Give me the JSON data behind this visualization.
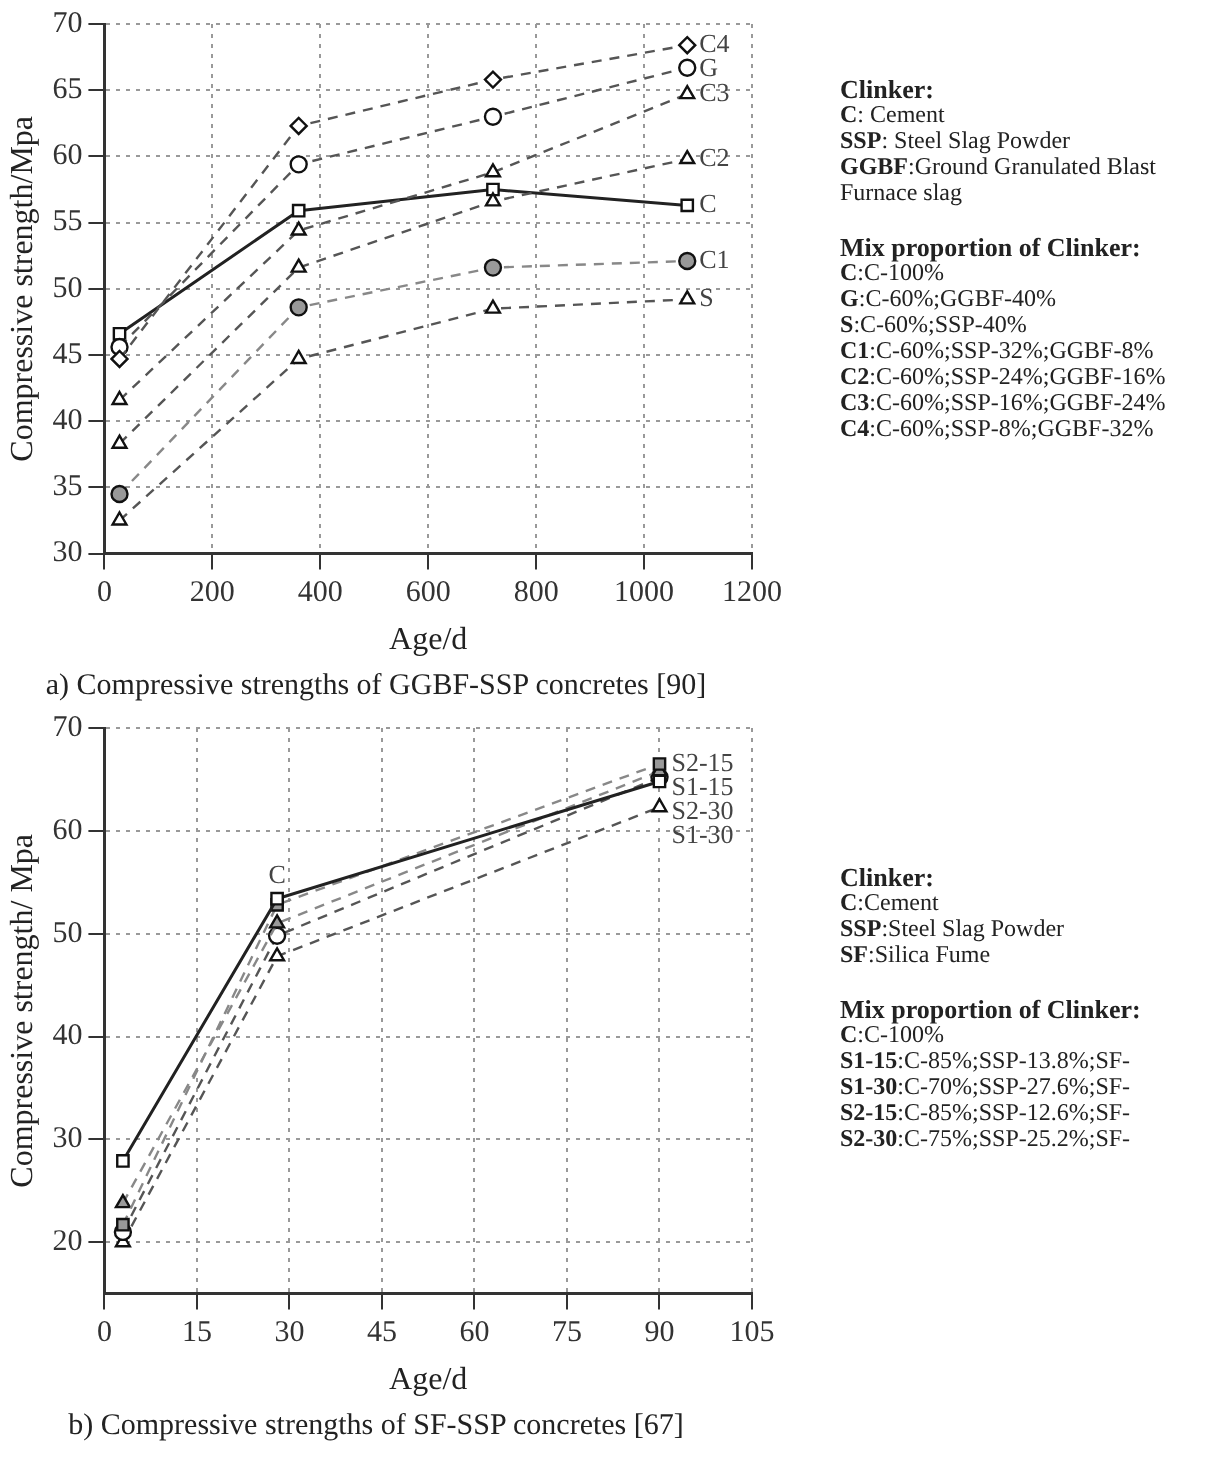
{
  "chart_data": [
    {
      "type": "line",
      "title": "a) Compressive strengths of GGBF-SSP concretes [90]",
      "xlabel": "Age/d",
      "ylabel": "Compressive strength/Mpa",
      "x": [
        28,
        360,
        720,
        1080
      ],
      "xlim": [
        0,
        1200
      ],
      "xticks": [
        0,
        200,
        400,
        600,
        800,
        1000,
        1200
      ],
      "ylim": [
        30,
        70
      ],
      "yticks": [
        30,
        35,
        40,
        45,
        50,
        55,
        60,
        65,
        70
      ],
      "grid": true,
      "legend": false,
      "series": [
        {
          "name": "C4",
          "color": "#555555",
          "marker": "diamond",
          "line_style": "dashed",
          "values": [
            44.7,
            62.3,
            65.8,
            68.4
          ]
        },
        {
          "name": "G",
          "color": "#555555",
          "marker": "circle",
          "line_style": "dashed",
          "values": [
            45.6,
            59.4,
            63.0,
            66.7
          ]
        },
        {
          "name": "C3",
          "color": "#555555",
          "marker": "triangle",
          "line_style": "dashed",
          "values": [
            41.6,
            54.4,
            58.8,
            64.7
          ]
        },
        {
          "name": "C2",
          "color": "#555555",
          "marker": "triangle",
          "line_style": "dashed",
          "values": [
            38.3,
            51.6,
            56.6,
            59.8
          ]
        },
        {
          "name": "C",
          "color": "#222222",
          "marker": "square",
          "line_style": "solid",
          "values": [
            46.6,
            55.9,
            57.5,
            56.3
          ]
        },
        {
          "name": "C1",
          "color": "#888888",
          "marker": "circle",
          "line_style": "dashed",
          "values": [
            34.5,
            48.6,
            51.6,
            52.1
          ]
        },
        {
          "name": "S",
          "color": "#555555",
          "marker": "triangle",
          "line_style": "dashed",
          "values": [
            32.5,
            44.7,
            48.5,
            49.2
          ]
        }
      ],
      "annotations": [
        "Clinker:",
        "C: Cement",
        "SSP: Steel Slag Powder",
        "GGBF:Ground Granulated Blast Furnace slag",
        "Mix proportion of Clinker:",
        "C:C-100%",
        "G:C-60%;GGBF-40%",
        "S:C-60%;SSP-40%",
        "C1:C-60%;SSP-32%;GGBF-8%",
        "C2:C-60%;SSP-24%;GGBF-16%",
        "C3:C-60%;SSP-16%;GGBF-24%",
        "C4:C-60%;SSP-8%;GGBF-32%"
      ]
    },
    {
      "type": "line",
      "title": "b) Compressive strengths of SF-SSP concretes [67]",
      "xlabel": "Age/d",
      "ylabel": "Compressive strength/ Mpa",
      "x": [
        3,
        28,
        90
      ],
      "xlim": [
        0,
        105
      ],
      "xticks": [
        0,
        15,
        30,
        45,
        60,
        75,
        90,
        105
      ],
      "ylim": [
        15,
        70
      ],
      "yticks": [
        20,
        30,
        40,
        50,
        60,
        70
      ],
      "grid": true,
      "legend": false,
      "series": [
        {
          "color": "#222222",
          "marker": "square",
          "line_style": "solid",
          "values": [
            27.9,
            53.4,
            64.8
          ]
        },
        {
          "name": "S2-15",
          "color": "#888888",
          "marker": "square",
          "line_style": "dashed",
          "values": [
            21.7,
            52.8,
            66.5
          ]
        },
        {
          "name": "S1-15",
          "color": "#888888",
          "marker": "triangle",
          "line_style": "dashed",
          "values": [
            23.8,
            51.0,
            65.8
          ]
        },
        {
          "name": "S2-30",
          "color": "#555555",
          "marker": "circle",
          "line_style": "dashed",
          "values": [
            21.0,
            49.8,
            65.2
          ]
        },
        {
          "name": "S1-30",
          "color": "#555555",
          "marker": "triangle",
          "line_style": "dashed",
          "values": [
            20.0,
            47.8,
            62.3
          ]
        }
      ],
      "annotations": [
        {
          "text": "C",
          "x": 28,
          "y": 53.4
        },
        "Clinker:",
        "C:Cement",
        "SSP:Steel Slag Powder",
        "SF:Silica Fume",
        "Mix proportion of Clinker:",
        "C:C-100%",
        "S1-15:C-85%;SSP-13.8%;SF-",
        "S1-30:C-70%;SSP-27.6%;SF-",
        "S2-15:C-85%;SSP-12.6%;SF-",
        "S2-30:C-75%;SSP-25.2%;SF-"
      ]
    }
  ]
}
